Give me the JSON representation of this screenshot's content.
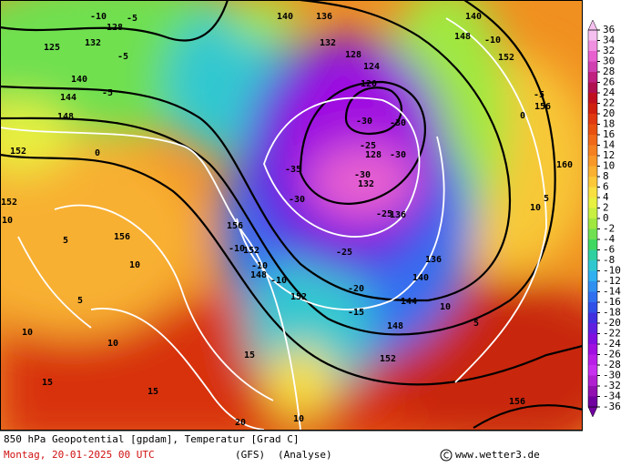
{
  "map": {
    "contour_labels": [
      "-10",
      "-5",
      "128",
      "132",
      "125",
      "-5",
      "140",
      "144",
      "-5",
      "148",
      "0",
      "152",
      "152",
      "10",
      "5",
      "156",
      "10",
      "5",
      "10",
      "10",
      "15",
      "15",
      "20",
      "140",
      "136",
      "132",
      "128",
      "124",
      "120",
      "-30",
      "-30",
      "-25",
      "128",
      "-30",
      "-35",
      "-30",
      "132",
      "-30",
      "-25",
      "136",
      "-25",
      "140",
      "136",
      "144",
      "-20",
      "-15",
      "148",
      "152",
      "-10",
      "-10",
      "148",
      "152",
      "-10",
      "156",
      "10",
      "152",
      "156",
      "5",
      "160",
      "10",
      "5",
      "0",
      "152",
      "-10",
      "148",
      "140",
      "156",
      "-5",
      "15",
      "10"
    ]
  },
  "colorbar": {
    "ticks": [
      36,
      34,
      32,
      30,
      28,
      26,
      24,
      22,
      20,
      18,
      16,
      14,
      12,
      10,
      8,
      6,
      4,
      2,
      0,
      -2,
      -4,
      -6,
      -8,
      -10,
      -12,
      -14,
      -16,
      -18,
      -20,
      -22,
      -24,
      -26,
      -28,
      -30,
      -32,
      -34,
      -36
    ],
    "colors": [
      "#f5c0f0",
      "#f090e0",
      "#e860d0",
      "#d040b0",
      "#c02080",
      "#b01050",
      "#c01020",
      "#d02010",
      "#e03810",
      "#e85010",
      "#f06818",
      "#f58020",
      "#f89828",
      "#fab030",
      "#fcc838",
      "#f8e040",
      "#e8f040",
      "#c8f040",
      "#a0e840",
      "#70e050",
      "#40d860",
      "#30d0a0",
      "#30c8d0",
      "#30b0f0",
      "#3090f0",
      "#3070f0",
      "#3050e8",
      "#4030e0",
      "#6020e0",
      "#8010e0",
      "#a010e0",
      "#b820e8",
      "#c830f0",
      "#b020d0",
      "#9010b0",
      "#7000a0"
    ]
  },
  "footer": {
    "title": "850 hPa Geopotential [gpdam], Temperatur [Grad C]",
    "date": "Montag, 20-01-2025  00 UTC",
    "model": "(GFS)",
    "run": "(Analyse)",
    "credit": "www.wetter3.de"
  }
}
